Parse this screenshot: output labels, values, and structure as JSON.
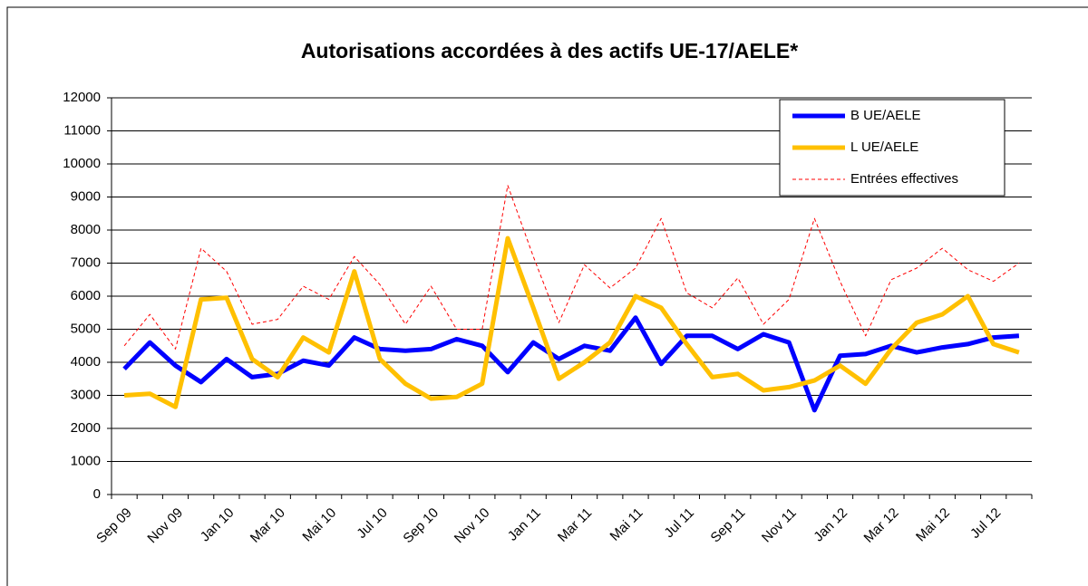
{
  "chart_data": {
    "type": "line",
    "title": "Autorisations accordées à des actifs UE-17/AELE*",
    "categories": [
      "Sep 09",
      null,
      "Nov 09",
      null,
      "Jan 10",
      null,
      "Mar 10",
      null,
      "Mai 10",
      null,
      "Jul 10",
      null,
      "Sep 10",
      null,
      "Nov 10",
      null,
      "Jan 11",
      null,
      "Mar 11",
      null,
      "Mai 11",
      null,
      "Jul 11",
      null,
      "Sep 11",
      null,
      "Nov 11",
      null,
      "Jan 12",
      null,
      "Mar 12",
      null,
      "Mai 12",
      null,
      "Jul 12",
      null
    ],
    "series": [
      {
        "name": "B UE/AELE",
        "color": "#0000ff",
        "style": "solid",
        "values": [
          3800,
          4600,
          3900,
          3400,
          4100,
          3550,
          3650,
          4050,
          3900,
          4750,
          4400,
          4350,
          4400,
          4700,
          4500,
          3700,
          4600,
          4100,
          4500,
          4350,
          5350,
          3950,
          4800,
          4800,
          4400,
          4850,
          4600,
          2550,
          4200,
          4250,
          4500,
          4300,
          4450,
          4550,
          4750,
          4800
        ]
      },
      {
        "name": "L UE/AELE",
        "color": "#ffc000",
        "style": "solid",
        "values": [
          3000,
          3050,
          2650,
          5900,
          5950,
          4100,
          3550,
          4750,
          4300,
          6750,
          4100,
          3350,
          2900,
          2950,
          3350,
          7750,
          5650,
          3500,
          4000,
          4600,
          6000,
          5650,
          4550,
          3550,
          3650,
          3150,
          3250,
          3450,
          3900,
          3350,
          4400,
          5200,
          5450,
          6000,
          4550,
          4300
        ]
      },
      {
        "name": "Entrées effectives",
        "color": "#ff0000",
        "style": "dashed",
        "values": [
          4500,
          5450,
          4400,
          7450,
          6750,
          5150,
          5300,
          6300,
          5900,
          7200,
          6350,
          5150,
          6300,
          5000,
          5000,
          9350,
          7200,
          5200,
          6950,
          6250,
          6850,
          8350,
          6100,
          5650,
          6550,
          5150,
          5900,
          8350,
          6450,
          4800,
          6500,
          6850,
          7450,
          6800,
          6450,
          7000
        ]
      }
    ],
    "ylim": [
      0,
      12000
    ],
    "yticks": [
      0,
      1000,
      2000,
      3000,
      4000,
      5000,
      6000,
      7000,
      8000,
      9000,
      10000,
      11000,
      12000
    ],
    "grid": true,
    "legend": "top-right"
  }
}
